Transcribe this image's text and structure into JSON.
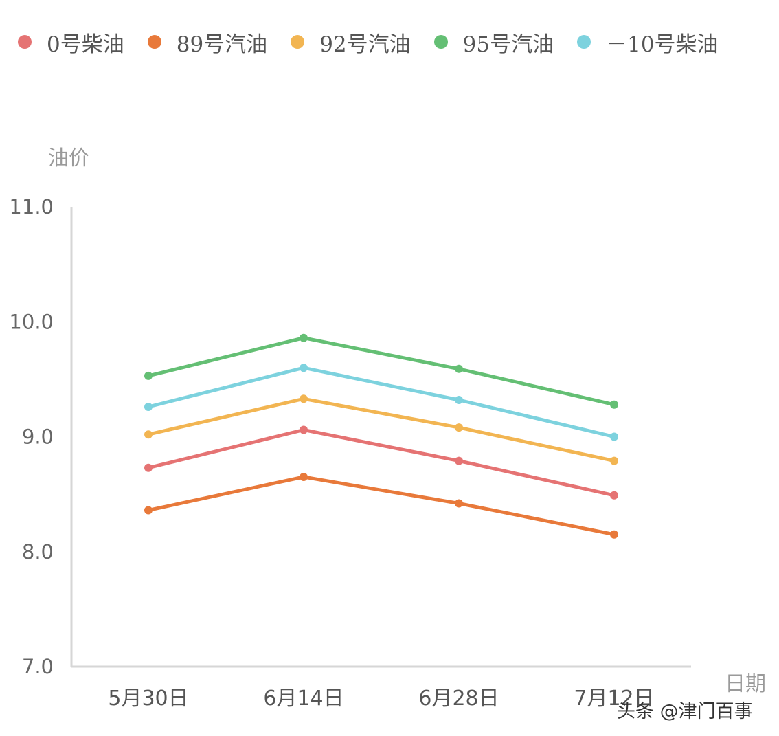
{
  "chart_data": {
    "type": "line",
    "title": "",
    "xlabel": "日期",
    "ylabel": "油价",
    "ylim": [
      7.0,
      11.0
    ],
    "yticks": [
      "7.0",
      "8.0",
      "9.0",
      "10.0",
      "11.0"
    ],
    "categories": [
      "5月30日",
      "6月14日",
      "6月28日",
      "7月12日"
    ],
    "grid": false,
    "legend_position": "top",
    "series": [
      {
        "name": "0号柴油",
        "color": "#E57373",
        "values": [
          8.73,
          9.06,
          8.79,
          8.49
        ]
      },
      {
        "name": "89号汽油",
        "color": "#E8793A",
        "values": [
          8.36,
          8.65,
          8.42,
          8.15
        ]
      },
      {
        "name": "92号汽油",
        "color": "#F2B552",
        "values": [
          9.02,
          9.33,
          9.08,
          8.79
        ]
      },
      {
        "name": "95号汽油",
        "color": "#64BF74",
        "values": [
          9.53,
          9.86,
          9.59,
          9.28
        ]
      },
      {
        "name": "－10号柴油",
        "color": "#7DD2DE",
        "values": [
          9.26,
          9.6,
          9.32,
          9.0
        ]
      }
    ]
  },
  "watermark": "头条 @津门百事"
}
